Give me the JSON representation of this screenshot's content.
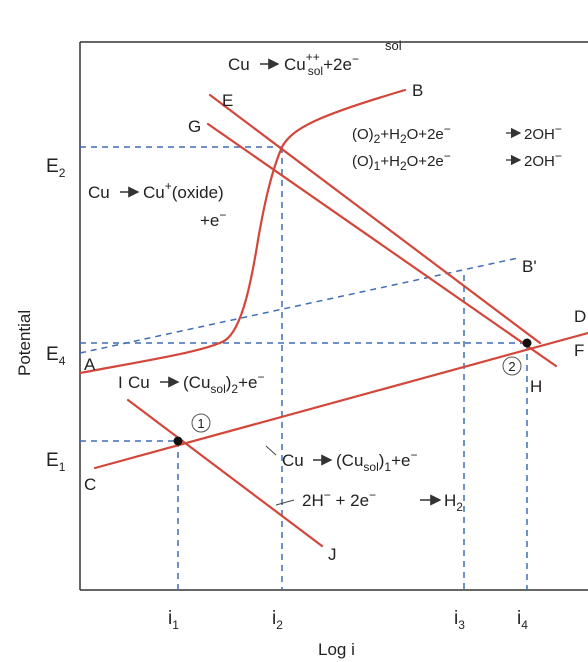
{
  "header": {
    "text": "sol"
  },
  "axes": {
    "ylabel": "Potential",
    "xlabel": "Log i"
  },
  "potentials": {
    "e2": {
      "main": "E",
      "sub": "2"
    },
    "e4": {
      "main": "E",
      "sub": "4"
    },
    "e1": {
      "main": "E",
      "sub": "1"
    }
  },
  "currents": {
    "i1": {
      "main": "i",
      "sub": "1"
    },
    "i2": {
      "main": "i",
      "sub": "2"
    },
    "i3": {
      "main": "i",
      "sub": "3"
    },
    "i4": {
      "main": "i",
      "sub": "4"
    }
  },
  "points": {
    "A": "A",
    "B": "B",
    "Bp": "B'",
    "C": "C",
    "D": "D",
    "E": "E",
    "F": "F",
    "G": "G",
    "H": "H",
    "I": "I",
    "J": "J"
  },
  "markers": {
    "m1": "1",
    "m2": "2"
  },
  "reactions": {
    "r1": {
      "a": "Cu",
      "b": "Cu",
      "sup": "++",
      "sub": "sol",
      "c": "+2e",
      "d": "−"
    },
    "r2": {
      "a": "(O)",
      "b": "2",
      "c": "+H",
      "d": "2",
      "e": "O+2e",
      "f": "−",
      "g": "2OH",
      "h": "−"
    },
    "r3": {
      "a": "(O)",
      "b": "1",
      "c": "+H",
      "d": "2",
      "e": "O+2e",
      "f": "−",
      "g": "2OH",
      "h": "−"
    },
    "r4": {
      "a": "Cu",
      "b": "Cu",
      "sup": "+",
      "c": "(oxide)",
      "line2": "+e",
      "line2sup": "−"
    },
    "r5": {
      "a": "Cu",
      "b": "(Cu",
      "sub": "sol",
      "c": ")",
      "d": "2",
      "e": "+e",
      "f": "−"
    },
    "r6": {
      "a": "Cu",
      "b": "(Cu",
      "sub": "sol",
      "c": ")",
      "d": "1",
      "e": "+e",
      "f": "−"
    },
    "r7": {
      "a": "2H",
      "b": "−",
      "c": " + 2e",
      "d": "−",
      "e": "H",
      "f": "2"
    }
  },
  "colors": {
    "curve": "#d2473a",
    "guide": "#3f6fb5",
    "axis": "#333333",
    "text": "#222222"
  }
}
